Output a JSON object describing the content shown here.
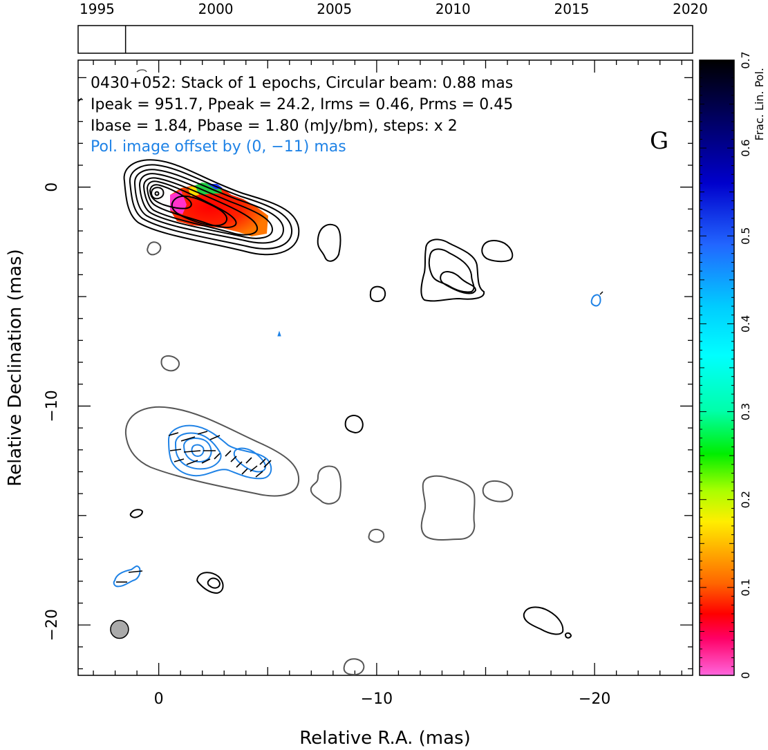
{
  "chart_data": {
    "type": "contour",
    "source": "0430+052",
    "panel_letter": "G",
    "info_lines": [
      "0430+052: Stack of 1 epochs, Circular beam: 0.88 mas",
      "Ipeak = 951.7, Ppeak = 24.2, Irms = 0.46, Prms = 0.45",
      "Ibase = 1.84, Pbase = 1.80 (mJy/bm), steps: x 2"
    ],
    "offset_note": "Pol. image offset by (0, −11) mas",
    "xlabel": "Relative R.A. (mas)",
    "ylabel": "Relative Declination (mas)",
    "xlim": [
      3.7,
      -24.5
    ],
    "ylim": [
      -22.3,
      5.8
    ],
    "x_ticks": [
      {
        "value": 0,
        "label": "0"
      },
      {
        "value": -10,
        "label": "−10"
      },
      {
        "value": -20,
        "label": "−20"
      }
    ],
    "y_ticks": [
      {
        "value": 0,
        "label": "0"
      },
      {
        "value": -10,
        "label": "−10"
      },
      {
        "value": -20,
        "label": "−20"
      }
    ],
    "timeline": {
      "range": [
        1994.2,
        2020.1
      ],
      "years": [
        "1995",
        "2000",
        "2005",
        "2010",
        "2015",
        "2020"
      ],
      "epochs": [
        1996.2
      ]
    },
    "beam": {
      "x": 1.8,
      "y": -20.2,
      "diameter_mas": 0.88
    },
    "colorbar": {
      "label": "Frac. Lin. Pol.",
      "min": 0,
      "max": 0.7,
      "tick_labels": [
        "0",
        "0.1",
        "0.2",
        "0.3",
        "0.4",
        "0.5",
        "0.6",
        "0.7"
      ]
    },
    "colors": {
      "total_intensity": "#000000",
      "lowest_contour": "#555555",
      "polarization": "#1e82e6",
      "beam_fill": "#aaaaaa"
    }
  }
}
